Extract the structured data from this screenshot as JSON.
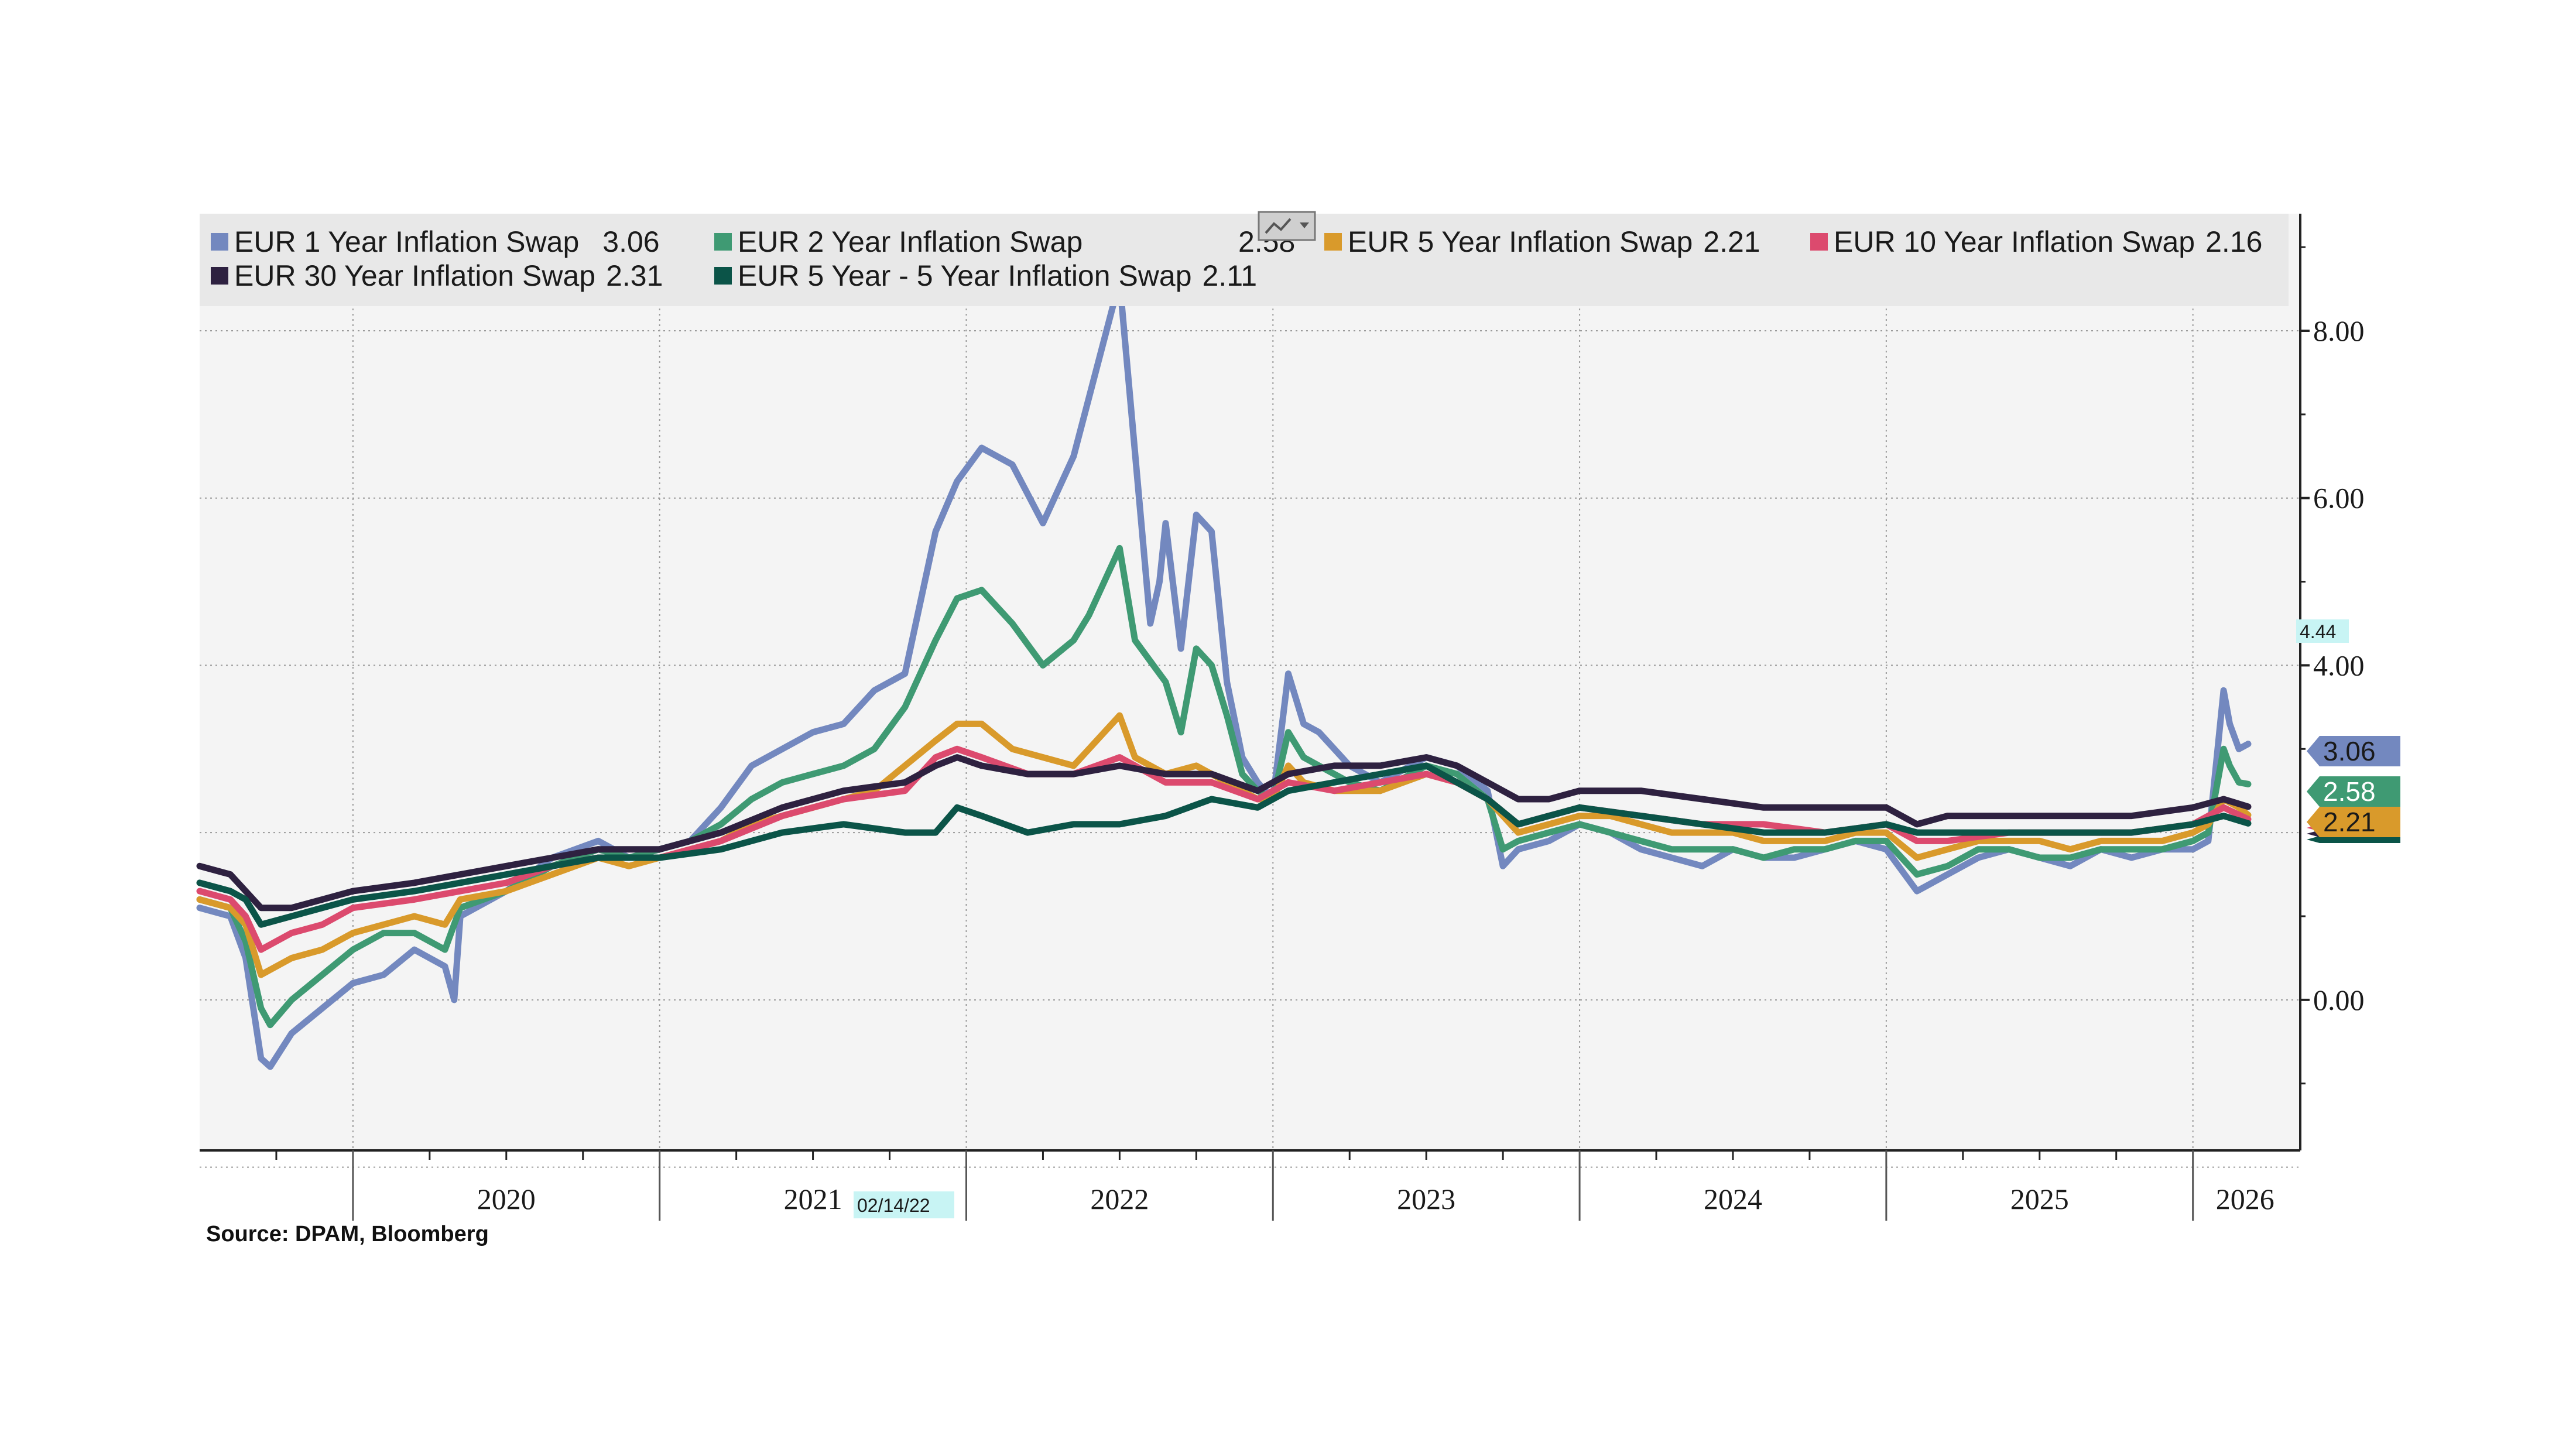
{
  "chart_data": {
    "type": "line",
    "title": "",
    "xlabel": "",
    "ylabel": "",
    "x_ticks": [
      "2020",
      "2021",
      "2022",
      "2023",
      "2024",
      "2025",
      "2026"
    ],
    "y_ticks": [
      "8.00",
      "6.00",
      "4.00",
      "0.00"
    ],
    "ylim": [
      -1.8,
      9.4
    ],
    "xlim": [
      2019.5,
      2026.35
    ],
    "grid": true,
    "legend_position": "top",
    "hover_date_label": "02/14/22",
    "hover_value_label": "4.44",
    "source": "Source: DPAM, Bloomberg",
    "series": [
      {
        "name": "EUR 1 Year Inflation Swap",
        "legend_value": "3.06",
        "color": "#7388bf",
        "x": [
          2019.5,
          2019.6,
          2019.65,
          2019.7,
          2019.73,
          2019.8,
          2019.9,
          2020.0,
          2020.1,
          2020.2,
          2020.3,
          2020.33,
          2020.35,
          2020.5,
          2020.65,
          2020.8,
          2020.9,
          2021.0,
          2021.1,
          2021.2,
          2021.3,
          2021.4,
          2021.5,
          2021.6,
          2021.7,
          2021.8,
          2021.9,
          2021.97,
          2022.05,
          2022.15,
          2022.25,
          2022.35,
          2022.4,
          2022.5,
          2022.6,
          2022.63,
          2022.65,
          2022.7,
          2022.75,
          2022.8,
          2022.85,
          2022.9,
          2022.95,
          2023.0,
          2023.05,
          2023.1,
          2023.15,
          2023.25,
          2023.35,
          2023.5,
          2023.6,
          2023.7,
          2023.75,
          2023.8,
          2023.9,
          2024.0,
          2024.1,
          2024.2,
          2024.3,
          2024.4,
          2024.5,
          2024.6,
          2024.7,
          2024.8,
          2024.9,
          2025.0,
          2025.1,
          2025.2,
          2025.3,
          2025.4,
          2025.5,
          2025.6,
          2025.7,
          2025.8,
          2025.9,
          2026.0,
          2026.05,
          2026.1,
          2026.12,
          2026.15,
          2026.18
        ],
        "y": [
          1.1,
          1.0,
          0.5,
          -0.7,
          -0.8,
          -0.4,
          -0.1,
          0.2,
          0.3,
          0.6,
          0.4,
          0.0,
          1.0,
          1.3,
          1.7,
          1.9,
          1.7,
          1.8,
          1.9,
          2.3,
          2.8,
          3.0,
          3.2,
          3.3,
          3.7,
          3.9,
          5.6,
          6.2,
          6.6,
          6.4,
          5.7,
          6.5,
          7.2,
          8.6,
          4.5,
          5.0,
          5.7,
          4.2,
          5.8,
          5.6,
          3.8,
          2.9,
          2.6,
          2.4,
          3.9,
          3.3,
          3.2,
          2.8,
          2.6,
          2.9,
          2.8,
          2.5,
          1.6,
          1.8,
          1.9,
          2.1,
          2.0,
          1.8,
          1.7,
          1.6,
          1.8,
          1.7,
          1.7,
          1.8,
          1.9,
          1.8,
          1.3,
          1.5,
          1.7,
          1.8,
          1.7,
          1.6,
          1.8,
          1.7,
          1.8,
          1.8,
          1.9,
          3.7,
          3.3,
          3.0,
          3.06
        ]
      },
      {
        "name": "EUR 2 Year Inflation Swap",
        "legend_value": "2.58",
        "color": "#3f9a73",
        "x": [
          2019.5,
          2019.6,
          2019.65,
          2019.7,
          2019.73,
          2019.8,
          2019.9,
          2020.0,
          2020.1,
          2020.2,
          2020.3,
          2020.35,
          2020.5,
          2020.65,
          2020.8,
          2020.9,
          2021.0,
          2021.1,
          2021.2,
          2021.3,
          2021.4,
          2021.5,
          2021.6,
          2021.7,
          2021.8,
          2021.9,
          2021.97,
          2022.05,
          2022.15,
          2022.25,
          2022.35,
          2022.4,
          2022.5,
          2022.55,
          2022.65,
          2022.7,
          2022.75,
          2022.8,
          2022.85,
          2022.9,
          2022.95,
          2023.0,
          2023.05,
          2023.1,
          2023.15,
          2023.25,
          2023.35,
          2023.5,
          2023.6,
          2023.7,
          2023.75,
          2023.8,
          2023.9,
          2024.0,
          2024.1,
          2024.2,
          2024.3,
          2024.4,
          2024.5,
          2024.6,
          2024.7,
          2024.8,
          2024.9,
          2025.0,
          2025.1,
          2025.2,
          2025.3,
          2025.4,
          2025.5,
          2025.6,
          2025.7,
          2025.8,
          2025.9,
          2026.0,
          2026.05,
          2026.1,
          2026.12,
          2026.15,
          2026.18
        ],
        "y": [
          1.2,
          1.1,
          0.7,
          -0.1,
          -0.3,
          0.0,
          0.3,
          0.6,
          0.8,
          0.8,
          0.6,
          1.1,
          1.3,
          1.6,
          1.8,
          1.7,
          1.8,
          1.9,
          2.1,
          2.4,
          2.6,
          2.7,
          2.8,
          3.0,
          3.5,
          4.3,
          4.8,
          4.9,
          4.5,
          4.0,
          4.3,
          4.6,
          5.4,
          4.3,
          3.8,
          3.2,
          4.2,
          4.0,
          3.4,
          2.7,
          2.5,
          2.4,
          3.2,
          2.9,
          2.8,
          2.6,
          2.5,
          2.8,
          2.7,
          2.4,
          1.8,
          1.9,
          2.0,
          2.1,
          2.0,
          1.9,
          1.8,
          1.8,
          1.8,
          1.7,
          1.8,
          1.8,
          1.9,
          1.9,
          1.5,
          1.6,
          1.8,
          1.8,
          1.7,
          1.7,
          1.8,
          1.8,
          1.8,
          1.9,
          2.0,
          3.0,
          2.8,
          2.6,
          2.58
        ]
      },
      {
        "name": "EUR 5 Year Inflation Swap",
        "legend_value": "2.21",
        "color": "#d99a2b",
        "x": [
          2019.5,
          2019.6,
          2019.65,
          2019.7,
          2019.8,
          2019.9,
          2020.0,
          2020.1,
          2020.2,
          2020.3,
          2020.35,
          2020.5,
          2020.65,
          2020.8,
          2020.9,
          2021.0,
          2021.1,
          2021.2,
          2021.3,
          2021.4,
          2021.5,
          2021.6,
          2021.7,
          2021.8,
          2021.9,
          2021.97,
          2022.05,
          2022.15,
          2022.25,
          2022.35,
          2022.4,
          2022.5,
          2022.55,
          2022.65,
          2022.75,
          2022.85,
          2022.95,
          2023.0,
          2023.05,
          2023.1,
          2023.2,
          2023.35,
          2023.5,
          2023.6,
          2023.7,
          2023.8,
          2023.9,
          2024.0,
          2024.1,
          2024.2,
          2024.3,
          2024.4,
          2024.5,
          2024.6,
          2024.7,
          2024.8,
          2024.9,
          2025.0,
          2025.1,
          2025.2,
          2025.3,
          2025.4,
          2025.5,
          2025.6,
          2025.7,
          2025.8,
          2025.9,
          2026.0,
          2026.05,
          2026.1,
          2026.15,
          2026.18
        ],
        "y": [
          1.2,
          1.1,
          0.9,
          0.3,
          0.5,
          0.6,
          0.8,
          0.9,
          1.0,
          0.9,
          1.2,
          1.3,
          1.5,
          1.7,
          1.6,
          1.7,
          1.8,
          1.9,
          2.1,
          2.2,
          2.3,
          2.4,
          2.5,
          2.8,
          3.1,
          3.3,
          3.3,
          3.0,
          2.9,
          2.8,
          3.0,
          3.4,
          2.9,
          2.7,
          2.8,
          2.6,
          2.4,
          2.4,
          2.8,
          2.6,
          2.5,
          2.5,
          2.7,
          2.6,
          2.4,
          2.0,
          2.1,
          2.2,
          2.2,
          2.1,
          2.0,
          2.0,
          2.0,
          1.9,
          1.9,
          1.9,
          2.0,
          2.0,
          1.7,
          1.8,
          1.9,
          1.9,
          1.9,
          1.8,
          1.9,
          1.9,
          1.9,
          2.0,
          2.1,
          2.4,
          2.3,
          2.21
        ]
      },
      {
        "name": "EUR 10 Year Inflation Swap",
        "legend_value": "2.16",
        "color": "#dc4a6e",
        "x": [
          2019.5,
          2019.6,
          2019.65,
          2019.7,
          2019.8,
          2019.9,
          2020.0,
          2020.2,
          2020.35,
          2020.5,
          2020.65,
          2020.8,
          2020.9,
          2021.0,
          2021.2,
          2021.4,
          2021.6,
          2021.8,
          2021.9,
          2021.97,
          2022.05,
          2022.2,
          2022.35,
          2022.5,
          2022.65,
          2022.8,
          2022.95,
          2023.05,
          2023.2,
          2023.35,
          2023.5,
          2023.6,
          2023.7,
          2023.8,
          2023.9,
          2024.0,
          2024.2,
          2024.4,
          2024.6,
          2024.8,
          2025.0,
          2025.1,
          2025.2,
          2025.4,
          2025.6,
          2025.8,
          2026.0,
          2026.1,
          2026.18
        ],
        "y": [
          1.3,
          1.2,
          1.0,
          0.6,
          0.8,
          0.9,
          1.1,
          1.2,
          1.3,
          1.4,
          1.6,
          1.7,
          1.7,
          1.7,
          1.9,
          2.2,
          2.4,
          2.5,
          2.9,
          3.0,
          2.9,
          2.7,
          2.7,
          2.9,
          2.6,
          2.6,
          2.4,
          2.6,
          2.5,
          2.6,
          2.7,
          2.6,
          2.4,
          2.1,
          2.2,
          2.3,
          2.2,
          2.1,
          2.1,
          2.0,
          2.1,
          1.9,
          1.9,
          2.0,
          2.0,
          2.0,
          2.1,
          2.3,
          2.16
        ]
      },
      {
        "name": "EUR 30 Year Inflation Swap",
        "legend_value": "2.31",
        "color": "#2e2140",
        "x": [
          2019.5,
          2019.6,
          2019.65,
          2019.7,
          2019.8,
          2019.9,
          2020.0,
          2020.2,
          2020.35,
          2020.5,
          2020.65,
          2020.8,
          2021.0,
          2021.2,
          2021.4,
          2021.6,
          2021.8,
          2021.9,
          2021.97,
          2022.05,
          2022.2,
          2022.35,
          2022.5,
          2022.65,
          2022.8,
          2022.95,
          2023.05,
          2023.2,
          2023.35,
          2023.5,
          2023.6,
          2023.7,
          2023.8,
          2023.9,
          2024.0,
          2024.2,
          2024.4,
          2024.6,
          2024.8,
          2025.0,
          2025.1,
          2025.2,
          2025.4,
          2025.6,
          2025.8,
          2026.0,
          2026.1,
          2026.18
        ],
        "y": [
          1.6,
          1.5,
          1.3,
          1.1,
          1.1,
          1.2,
          1.3,
          1.4,
          1.5,
          1.6,
          1.7,
          1.8,
          1.8,
          2.0,
          2.3,
          2.5,
          2.6,
          2.8,
          2.9,
          2.8,
          2.7,
          2.7,
          2.8,
          2.7,
          2.7,
          2.5,
          2.7,
          2.8,
          2.8,
          2.9,
          2.8,
          2.6,
          2.4,
          2.4,
          2.5,
          2.5,
          2.4,
          2.3,
          2.3,
          2.3,
          2.1,
          2.2,
          2.2,
          2.2,
          2.2,
          2.3,
          2.4,
          2.31
        ]
      },
      {
        "name": "EUR 5 Year - 5 Year Inflation Swap",
        "legend_value": "2.11",
        "color": "#0b5448",
        "x": [
          2019.5,
          2019.6,
          2019.65,
          2019.7,
          2019.8,
          2019.9,
          2020.0,
          2020.2,
          2020.35,
          2020.5,
          2020.65,
          2020.8,
          2021.0,
          2021.2,
          2021.4,
          2021.6,
          2021.8,
          2021.9,
          2021.97,
          2022.05,
          2022.2,
          2022.35,
          2022.5,
          2022.65,
          2022.8,
          2022.95,
          2023.05,
          2023.2,
          2023.35,
          2023.5,
          2023.6,
          2023.7,
          2023.8,
          2023.9,
          2024.0,
          2024.2,
          2024.4,
          2024.6,
          2024.8,
          2025.0,
          2025.1,
          2025.2,
          2025.4,
          2025.6,
          2025.8,
          2026.0,
          2026.1,
          2026.18
        ],
        "y": [
          1.4,
          1.3,
          1.2,
          0.9,
          1.0,
          1.1,
          1.2,
          1.3,
          1.4,
          1.5,
          1.6,
          1.7,
          1.7,
          1.8,
          2.0,
          2.1,
          2.0,
          2.0,
          2.3,
          2.2,
          2.0,
          2.1,
          2.1,
          2.2,
          2.4,
          2.3,
          2.5,
          2.6,
          2.7,
          2.8,
          2.6,
          2.4,
          2.1,
          2.2,
          2.3,
          2.2,
          2.1,
          2.0,
          2.0,
          2.1,
          2.0,
          2.0,
          2.0,
          2.0,
          2.0,
          2.1,
          2.2,
          2.11
        ]
      }
    ]
  }
}
